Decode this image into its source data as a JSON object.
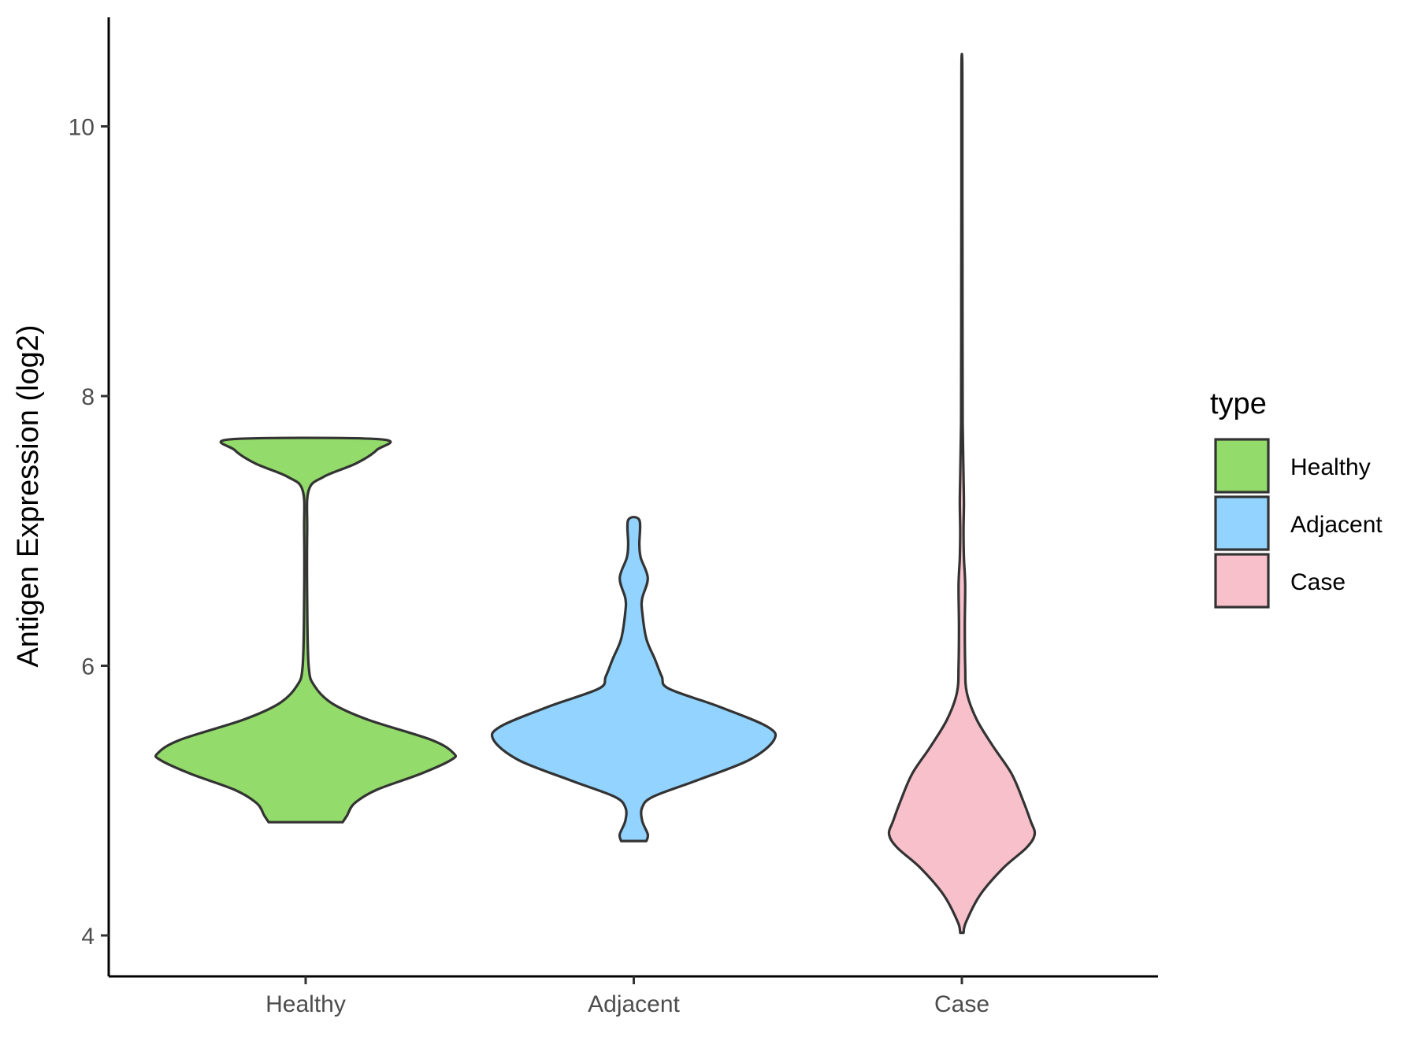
{
  "chart_data": {
    "type": "violin",
    "title": "",
    "xlabel": "",
    "ylabel": "Antigen Expression (log2)",
    "ylim": [
      3.7,
      10.8
    ],
    "yticks": [
      4,
      6,
      8,
      10
    ],
    "grid": false,
    "legend": {
      "title": "type",
      "position": "right"
    },
    "categories": [
      "Healthy",
      "Adjacent",
      "Case"
    ],
    "series": [
      {
        "name": "Healthy",
        "color": "#93DB6A",
        "range": [
          4.84,
          7.68
        ],
        "profile": [
          [
            4.84,
            0.25
          ],
          [
            4.89,
            0.28
          ],
          [
            4.98,
            0.33
          ],
          [
            5.08,
            0.48
          ],
          [
            5.2,
            0.78
          ],
          [
            5.3,
            0.98
          ],
          [
            5.35,
            1.0
          ],
          [
            5.45,
            0.85
          ],
          [
            5.6,
            0.42
          ],
          [
            5.72,
            0.18
          ],
          [
            5.85,
            0.06
          ],
          [
            6.0,
            0.02
          ],
          [
            6.5,
            0.01
          ],
          [
            7.0,
            0.01
          ],
          [
            7.3,
            0.02
          ],
          [
            7.4,
            0.12
          ],
          [
            7.5,
            0.34
          ],
          [
            7.6,
            0.48
          ],
          [
            7.68,
            0.5
          ]
        ]
      },
      {
        "name": "Adjacent",
        "color": "#92D3FF",
        "range": [
          4.7,
          7.08
        ],
        "profile": [
          [
            4.7,
            0.09
          ],
          [
            4.75,
            0.1
          ],
          [
            4.85,
            0.06
          ],
          [
            4.95,
            0.06
          ],
          [
            5.03,
            0.14
          ],
          [
            5.15,
            0.45
          ],
          [
            5.3,
            0.82
          ],
          [
            5.45,
            1.0
          ],
          [
            5.55,
            0.95
          ],
          [
            5.7,
            0.6
          ],
          [
            5.83,
            0.25
          ],
          [
            5.92,
            0.2
          ],
          [
            6.05,
            0.15
          ],
          [
            6.2,
            0.09
          ],
          [
            6.4,
            0.06
          ],
          [
            6.5,
            0.06
          ],
          [
            6.65,
            0.1
          ],
          [
            6.8,
            0.05
          ],
          [
            6.9,
            0.04
          ],
          [
            7.08,
            0.04
          ]
        ]
      },
      {
        "name": "Case",
        "color": "#F7C0CB",
        "range": [
          4.02,
          10.5
        ],
        "profile": [
          [
            4.02,
            0.02
          ],
          [
            4.1,
            0.05
          ],
          [
            4.3,
            0.22
          ],
          [
            4.5,
            0.5
          ],
          [
            4.65,
            0.78
          ],
          [
            4.75,
            0.88
          ],
          [
            4.85,
            0.83
          ],
          [
            5.0,
            0.74
          ],
          [
            5.2,
            0.6
          ],
          [
            5.4,
            0.38
          ],
          [
            5.6,
            0.18
          ],
          [
            5.8,
            0.06
          ],
          [
            6.0,
            0.04
          ],
          [
            6.3,
            0.035
          ],
          [
            6.6,
            0.04
          ],
          [
            6.8,
            0.025
          ],
          [
            7.0,
            0.02
          ],
          [
            7.2,
            0.025
          ],
          [
            7.4,
            0.02
          ],
          [
            7.8,
            0.01
          ],
          [
            8.5,
            0.008
          ],
          [
            9.5,
            0.006
          ],
          [
            10.2,
            0.006
          ],
          [
            10.5,
            0.004
          ]
        ]
      }
    ]
  }
}
